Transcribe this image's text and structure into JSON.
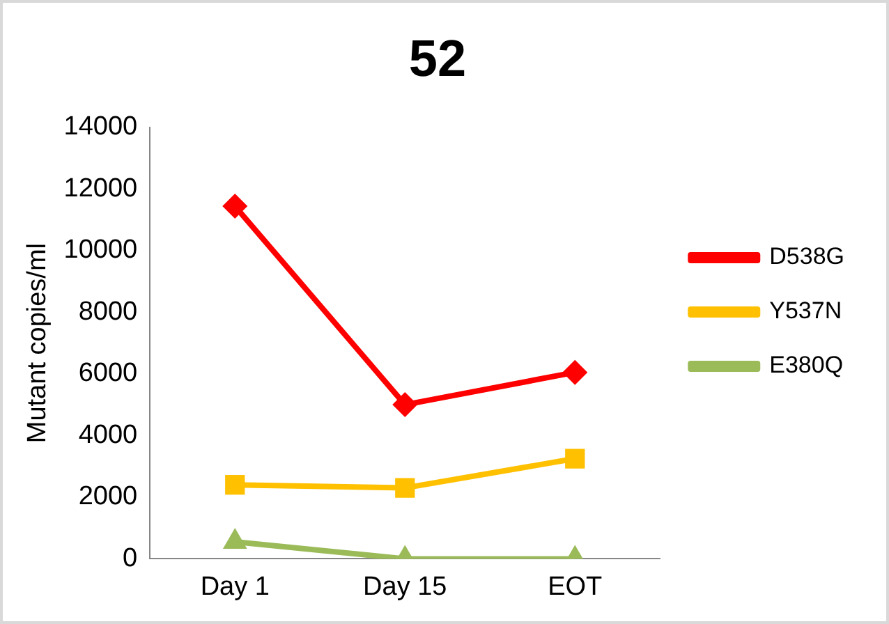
{
  "chart_data": {
    "type": "line",
    "title": "52",
    "ylabel": "Mutant copies/ml",
    "categories": [
      "Day 1",
      "Day 15",
      "EOT"
    ],
    "series": [
      {
        "name": "D538G",
        "color": "#ff0000",
        "marker": "diamond",
        "values": [
          11440,
          5000,
          6050
        ]
      },
      {
        "name": "Y537N",
        "color": "#ffc000",
        "marker": "square",
        "values": [
          2400,
          2300,
          3250
        ]
      },
      {
        "name": "E380Q",
        "color": "#9bbb59",
        "marker": "triangle",
        "values": [
          550,
          0,
          0
        ]
      }
    ],
    "ylim": [
      0,
      14000
    ],
    "yticks": [
      0,
      2000,
      4000,
      6000,
      8000,
      10000,
      12000,
      14000
    ],
    "grid": false,
    "legend": "right"
  }
}
